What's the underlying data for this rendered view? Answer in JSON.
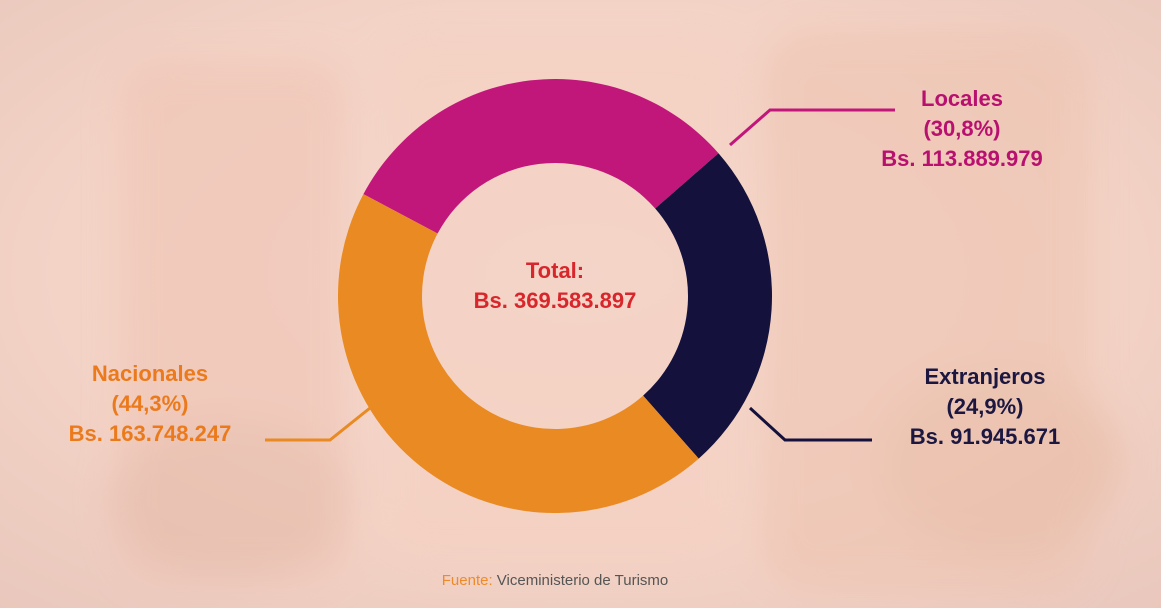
{
  "chart_data": {
    "type": "donut",
    "categories": [
      "Locales",
      "Extranjeros",
      "Nacionales"
    ],
    "values": [
      30.8,
      24.9,
      44.3
    ],
    "value_labels": [
      "(30,8%)",
      "(24,9%)",
      "(44,3%)"
    ],
    "amount_labels": [
      "Bs. 113.889.979",
      "Bs. 91.945.671",
      "Bs. 163.748.247"
    ],
    "colors": [
      "#c2177a",
      "#14113d",
      "#e98a22"
    ],
    "label_colors": [
      "#b8106f",
      "#1b1740",
      "#eb7a1c"
    ],
    "center_title": "Total:",
    "center_value": "Bs. 369.583.897",
    "source_prefix": "Fuente:",
    "source": "Viceministerio de Turismo"
  }
}
